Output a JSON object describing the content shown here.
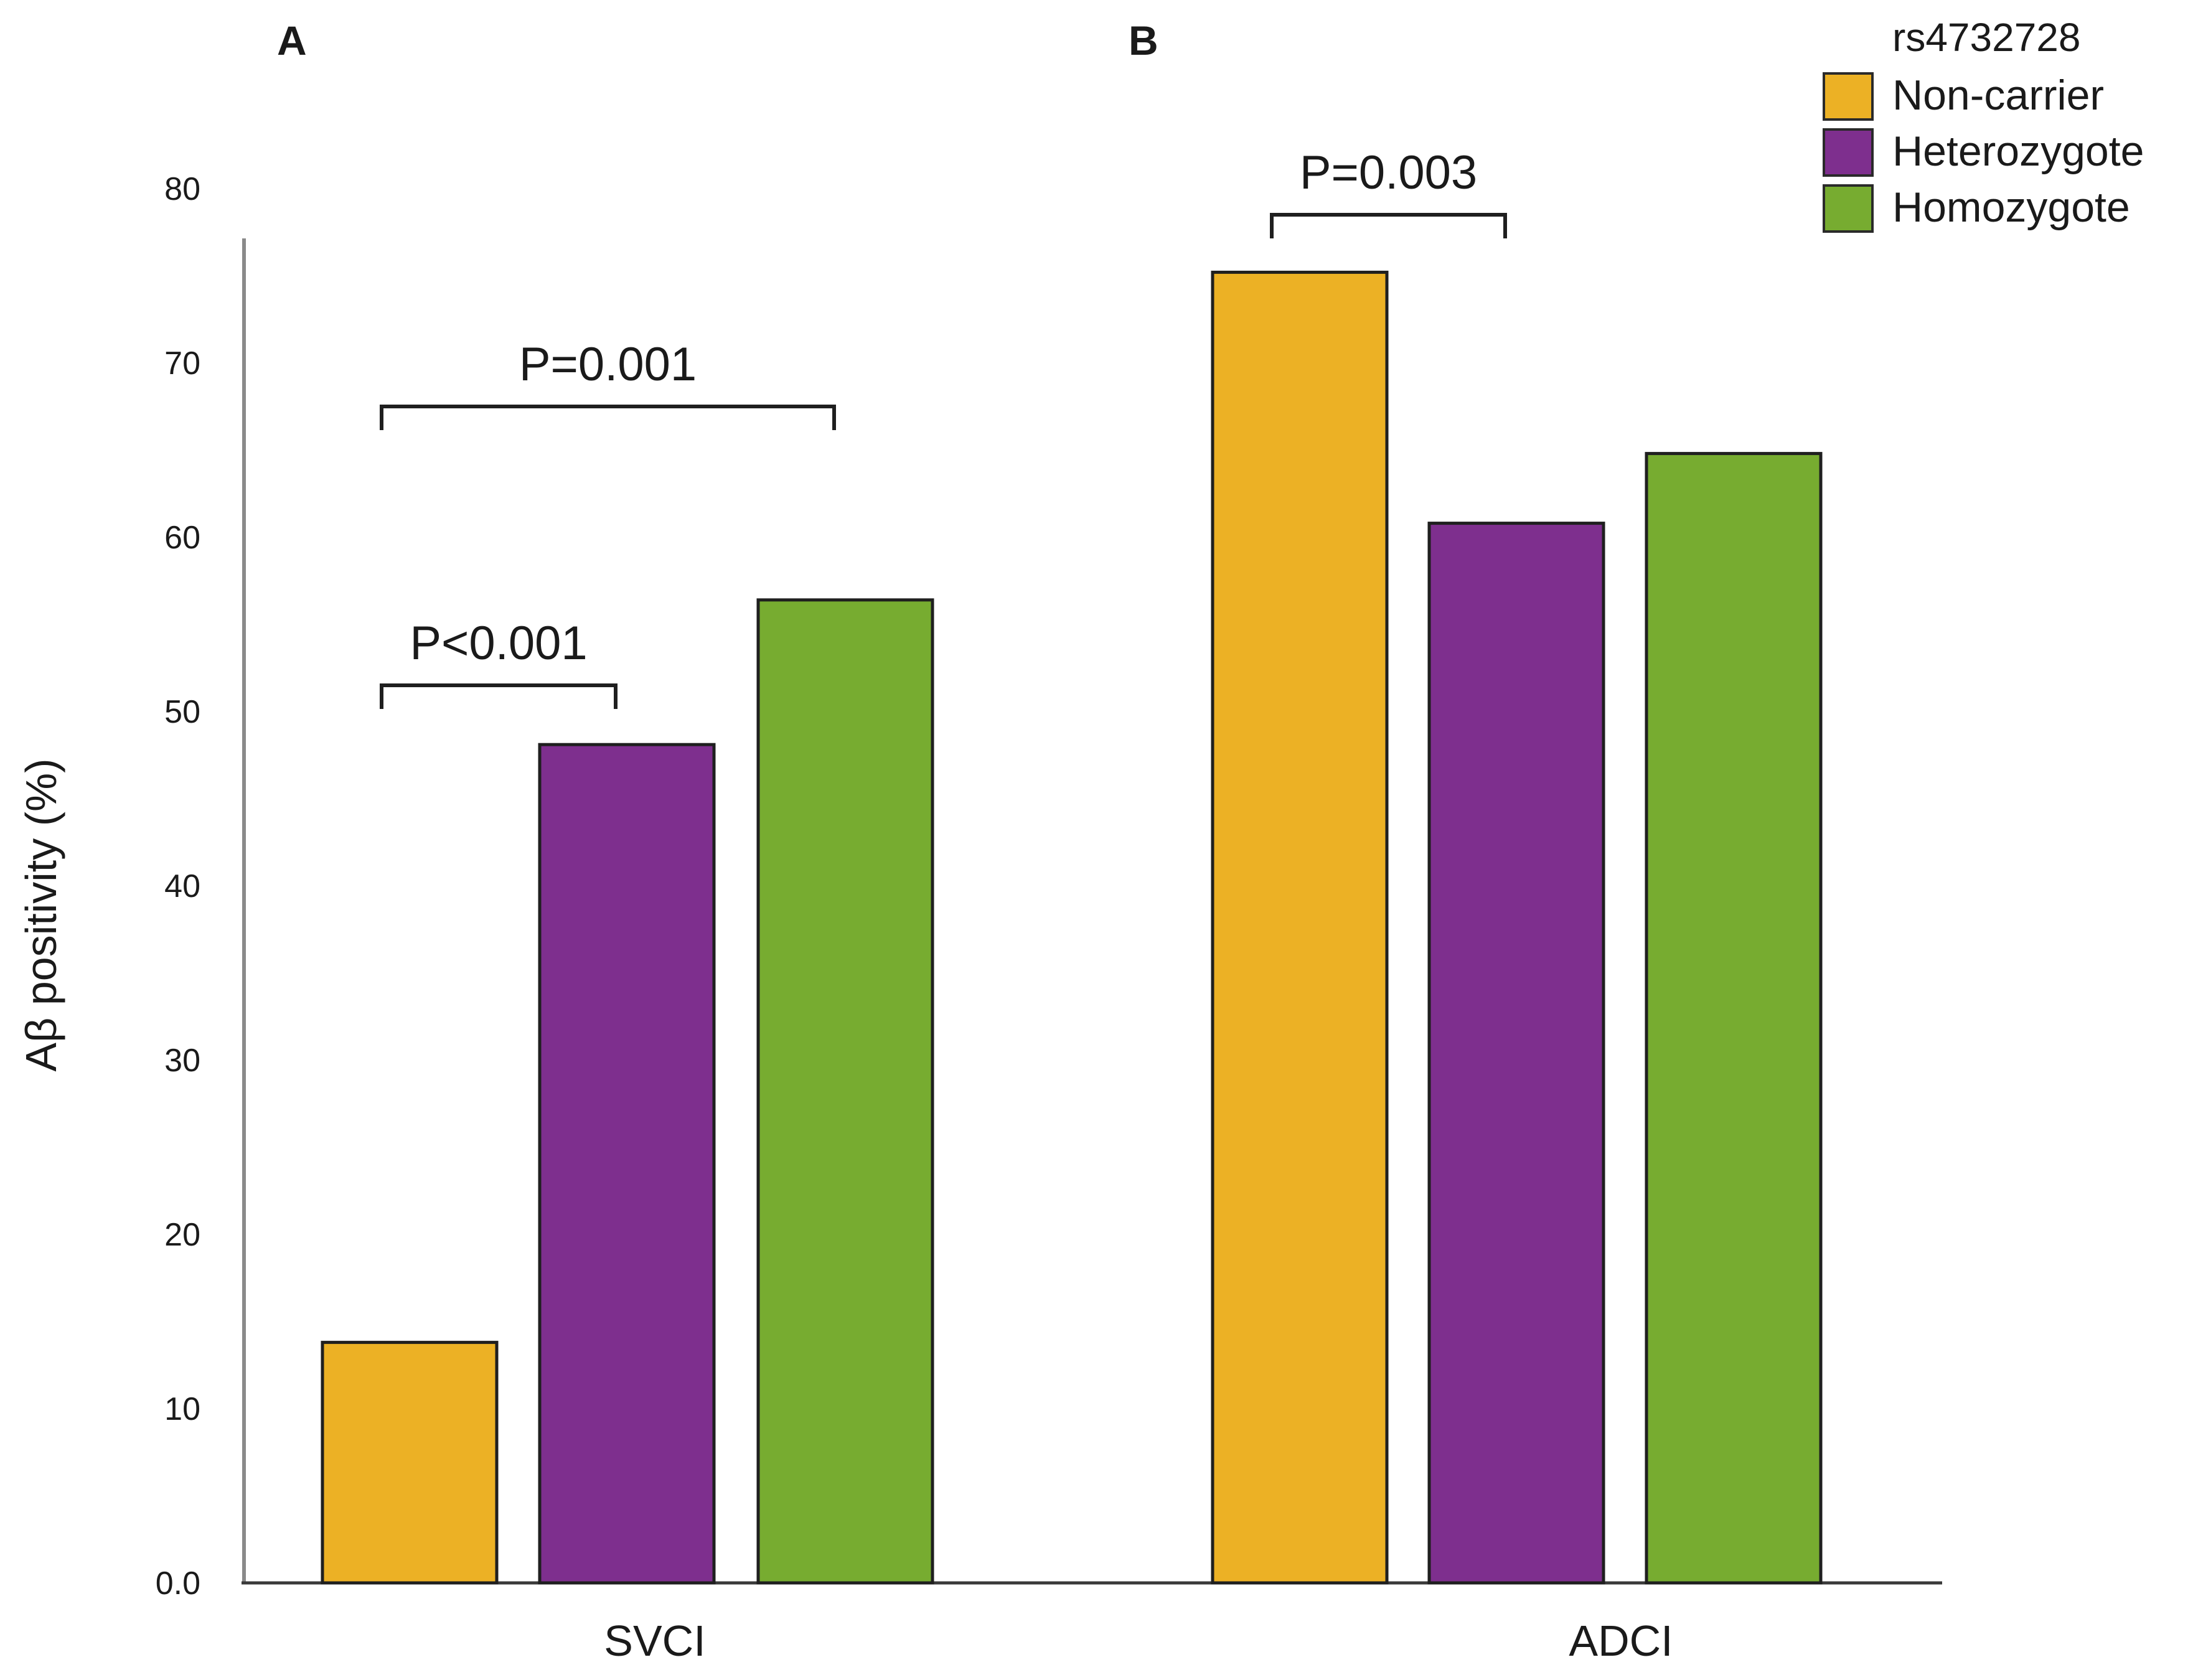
{
  "chart_data": {
    "type": "bar",
    "title": "",
    "xlabel": "",
    "ylabel": "Aβ positivity (%)",
    "ylim": [
      0,
      80
    ],
    "yticks": [
      "0.0",
      "10",
      "20",
      "30",
      "40",
      "50",
      "60",
      "70",
      "80"
    ],
    "categories": [
      "SVCI",
      "ADCI"
    ],
    "panel_labels": [
      "A",
      "B"
    ],
    "series": [
      {
        "name": "Non-carrier",
        "color": "#ECB125",
        "values": [
          13.8,
          75.2
        ]
      },
      {
        "name": "Heterozygote",
        "color": "#7E2F8E",
        "values": [
          48.1,
          60.8
        ]
      },
      {
        "name": "Homozygote",
        "color": "#77AC30",
        "values": [
          56.4,
          64.8
        ]
      }
    ],
    "legend": {
      "title": "rs4732728",
      "position": "top-right"
    },
    "annotations": [
      {
        "text": "P<0.001",
        "category": "SVCI",
        "from_series": 0,
        "to_series": 1,
        "level": 51.5
      },
      {
        "text": "P=0.001",
        "category": "SVCI",
        "from_series": 0,
        "to_series": 2,
        "level": 67.5
      },
      {
        "text": "P=0.003",
        "category": "ADCI",
        "from_series": 0,
        "to_series": 1,
        "level": 78.5
      }
    ]
  }
}
